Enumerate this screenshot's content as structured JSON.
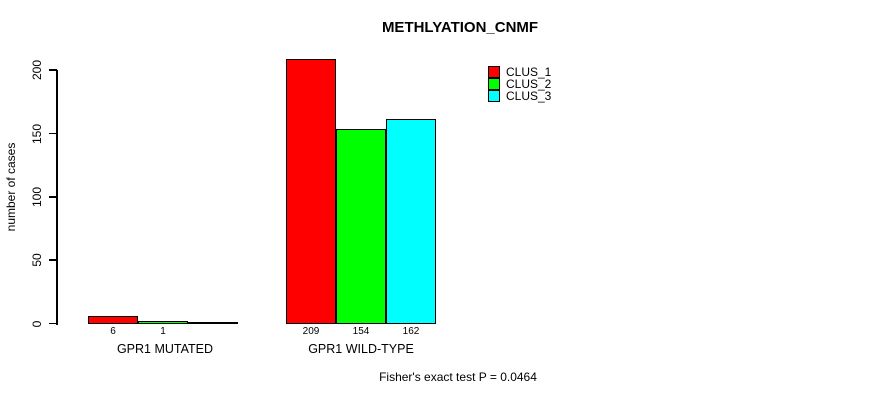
{
  "title": "METHLYATION_CNMF",
  "ylabel": "number of cases",
  "annotation": "Fisher's exact test P = 0.0464",
  "colors": {
    "clus_1": "#ff0000",
    "clus_2": "#00ff00",
    "clus_3": "#00ffff",
    "axis": "#000000",
    "background": "#ffffff"
  },
  "chart_data": {
    "type": "bar",
    "categories": [
      "GPR1 MUTATED",
      "GPR1 WILD-TYPE"
    ],
    "series": [
      {
        "name": "CLUS_1",
        "color": "#ff0000",
        "values": [
          6,
          209
        ]
      },
      {
        "name": "CLUS_2",
        "color": "#00ff00",
        "values": [
          1,
          154
        ]
      },
      {
        "name": "CLUS_3",
        "color": "#00ffff",
        "values": [
          0,
          162
        ]
      }
    ],
    "bar_value_labels": [
      [
        "6",
        "1",
        ""
      ],
      [
        "209",
        "154",
        "162"
      ]
    ],
    "title": "METHLYATION_CNMF",
    "xlabel": "",
    "ylabel": "number of cases",
    "yticks": [
      0,
      50,
      100,
      150,
      200
    ],
    "ylim": [
      0,
      200
    ],
    "grid": false,
    "legend_position": "top-right",
    "legend_entries": [
      "CLUS_1",
      "CLUS_2",
      "CLUS_3"
    ],
    "annotation": "Fisher's exact test P = 0.0464"
  }
}
